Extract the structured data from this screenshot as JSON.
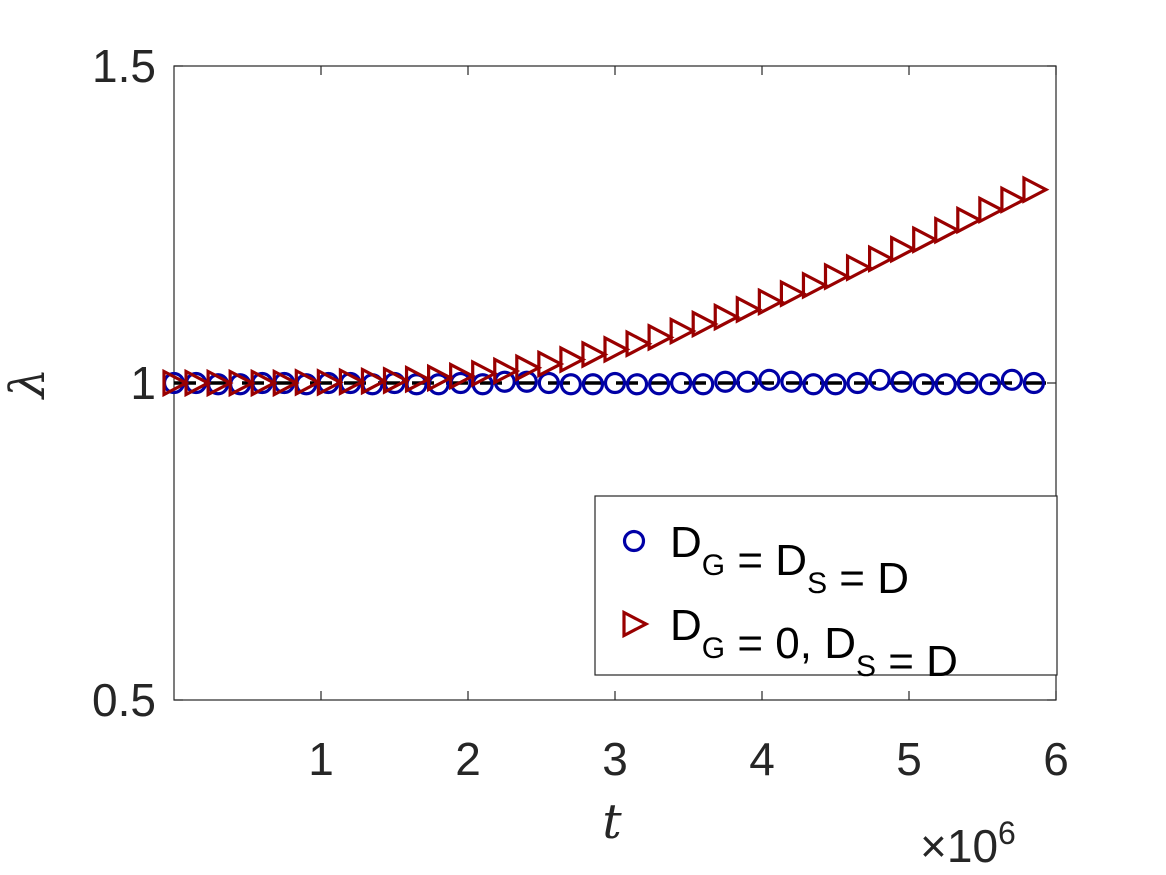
{
  "chart_data": {
    "type": "scatter",
    "xlabel": "t",
    "ylabel": "λ",
    "x_exponent_label": "×10",
    "x_exponent_power": "6",
    "xlim": [
      0,
      6
    ],
    "ylim": [
      0.5,
      1.5
    ],
    "xticks": [
      1,
      2,
      3,
      4,
      5,
      6
    ],
    "xtick_labels": [
      "1",
      "2",
      "3",
      "4",
      "5",
      "6"
    ],
    "yticks": [
      0.5,
      1,
      1.5
    ],
    "ytick_labels": [
      "0.5",
      "1",
      "1.5"
    ],
    "x_multiplier": 1000000,
    "reference_line": {
      "y": 1.0,
      "style": "dashed",
      "color": "#000000"
    },
    "legend": {
      "position": "bottom-right"
    },
    "series": [
      {
        "name_parts": [
          [
            "D",
            "G"
          ],
          [
            " = ",
            ""
          ],
          [
            "D",
            "S"
          ],
          [
            " = D",
            ""
          ]
        ],
        "name_text": "D_G = D_S = D",
        "marker": "circle",
        "color": "#0000a6",
        "x": [
          0.0,
          0.15,
          0.3,
          0.45,
          0.6,
          0.75,
          0.9,
          1.05,
          1.2,
          1.35,
          1.5,
          1.65,
          1.8,
          1.95,
          2.1,
          2.25,
          2.4,
          2.55,
          2.7,
          2.85,
          3.0,
          3.15,
          3.3,
          3.45,
          3.6,
          3.75,
          3.9,
          4.05,
          4.2,
          4.35,
          4.5,
          4.65,
          4.8,
          4.95,
          5.1,
          5.25,
          5.4,
          5.55,
          5.7,
          5.85
        ],
        "y": [
          1.0,
          1.0,
          0.998,
          0.998,
          1.0,
          1.0,
          0.998,
          1.0,
          1.0,
          0.998,
          1.0,
          0.998,
          0.998,
          1.0,
          0.998,
          1.002,
          1.002,
          1.0,
          0.998,
          0.998,
          1.0,
          0.998,
          0.998,
          1.0,
          0.998,
          1.002,
          1.002,
          1.005,
          1.002,
          0.998,
          0.998,
          1.0,
          1.005,
          1.002,
          0.998,
          0.998,
          1.0,
          0.998,
          1.005,
          1.0
        ]
      },
      {
        "name_parts": [
          [
            "D",
            "G"
          ],
          [
            " = 0, ",
            ""
          ],
          [
            "D",
            "S"
          ],
          [
            " = D",
            ""
          ]
        ],
        "name_text": "D_G = 0, D_S = D",
        "marker": "triangle-right",
        "color": "#990000",
        "x": [
          0.0,
          0.15,
          0.3,
          0.45,
          0.6,
          0.75,
          0.9,
          1.05,
          1.2,
          1.35,
          1.5,
          1.65,
          1.8,
          1.95,
          2.1,
          2.25,
          2.4,
          2.55,
          2.7,
          2.85,
          3.0,
          3.15,
          3.3,
          3.45,
          3.6,
          3.75,
          3.9,
          4.05,
          4.2,
          4.35,
          4.5,
          4.65,
          4.8,
          4.95,
          5.1,
          5.25,
          5.4,
          5.55,
          5.7,
          5.85
        ],
        "y": [
          1.0,
          1.0,
          1.0,
          1.0,
          1.0,
          1.0,
          1.001,
          1.001,
          1.002,
          1.003,
          1.004,
          1.006,
          1.008,
          1.011,
          1.015,
          1.019,
          1.024,
          1.03,
          1.037,
          1.045,
          1.053,
          1.062,
          1.072,
          1.082,
          1.093,
          1.104,
          1.116,
          1.128,
          1.141,
          1.154,
          1.168,
          1.182,
          1.196,
          1.211,
          1.226,
          1.241,
          1.257,
          1.273,
          1.289,
          1.305
        ]
      }
    ]
  }
}
